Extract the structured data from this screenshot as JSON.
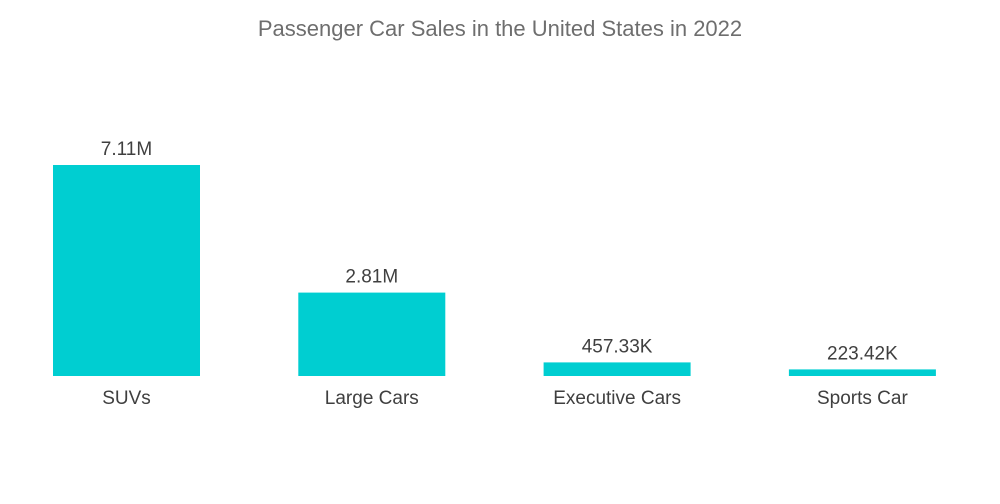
{
  "chart_data": {
    "type": "bar",
    "title": "Passenger Car Sales in the United States in 2022",
    "categories": [
      "SUVs",
      "Large Cars",
      "Executive Cars",
      "Sports Car"
    ],
    "values": [
      7110000,
      2810000,
      457330,
      223420
    ],
    "value_labels": [
      "7.11M",
      "2.81M",
      "457.33K",
      "223.42K"
    ],
    "xlabel": "",
    "ylabel": "",
    "ylim": [
      0,
      7110000
    ],
    "grid": false,
    "legend": "none",
    "bar_color": "#00CED1"
  }
}
